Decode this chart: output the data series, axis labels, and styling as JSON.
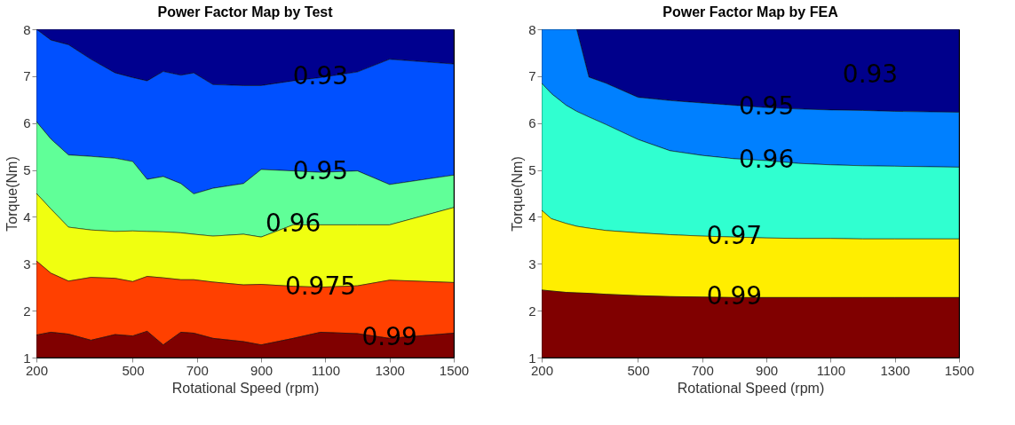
{
  "chart_data": [
    {
      "type": "area",
      "title": "Power Factor Map by Test",
      "xlabel": "Rotational Speed (rpm)",
      "ylabel": "Torque(Nm)",
      "x": [
        200,
        245,
        300,
        370,
        445,
        500,
        545,
        595,
        650,
        690,
        750,
        845,
        900,
        1000,
        1085,
        1200,
        1300,
        1500
      ],
      "series": [
        {
          "color": "#00008f",
          "values": [
            8,
            8,
            8,
            8,
            8,
            8,
            8,
            8,
            8,
            8,
            8,
            8,
            8,
            8,
            8,
            8,
            8,
            8
          ]
        },
        {
          "color": "#0050ff",
          "values": [
            8.0,
            7.77,
            7.67,
            7.36,
            7.07,
            6.97,
            6.9,
            7.1,
            7.02,
            7.07,
            6.82,
            6.8,
            6.8,
            6.9,
            6.97,
            7.09,
            7.36,
            7.26
          ]
        },
        {
          "color": "#60ff98",
          "values": [
            6.03,
            5.66,
            5.32,
            5.29,
            5.25,
            5.18,
            4.8,
            4.86,
            4.71,
            4.49,
            4.61,
            4.71,
            5.01,
            4.98,
            4.95,
            4.98,
            4.69,
            4.89
          ]
        },
        {
          "color": "#f0ff10",
          "values": [
            4.5,
            4.17,
            3.78,
            3.72,
            3.69,
            3.7,
            3.69,
            3.68,
            3.66,
            3.63,
            3.59,
            3.63,
            3.57,
            3.83,
            3.83,
            3.83,
            3.83,
            4.2
          ]
        },
        {
          "color": "#ff4000",
          "values": [
            3.06,
            2.8,
            2.63,
            2.71,
            2.69,
            2.62,
            2.73,
            2.7,
            2.66,
            2.66,
            2.61,
            2.55,
            2.56,
            2.52,
            2.5,
            2.53,
            2.65,
            2.6
          ]
        },
        {
          "color": "#800000",
          "values": [
            1.48,
            1.54,
            1.5,
            1.37,
            1.49,
            1.46,
            1.56,
            1.27,
            1.54,
            1.52,
            1.41,
            1.34,
            1.27,
            1.41,
            1.54,
            1.51,
            1.41,
            1.52
          ]
        }
      ],
      "xlim": [
        200,
        1500
      ],
      "ylim": [
        1,
        8
      ],
      "xticks": [
        200,
        500,
        700,
        900,
        1100,
        1300,
        1500
      ],
      "yticks": [
        1,
        2,
        3,
        4,
        5,
        6,
        7,
        8
      ],
      "annotations": [
        {
          "text": "0.93",
          "x": 1085,
          "y": 6.97
        },
        {
          "text": "0.95",
          "x": 1085,
          "y": 4.95
        },
        {
          "text": "0.96",
          "x": 1000,
          "y": 3.83
        },
        {
          "text": "0.975",
          "x": 1085,
          "y": 2.5
        },
        {
          "text": "0.99",
          "x": 1300,
          "y": 1.41
        }
      ]
    },
    {
      "type": "area",
      "title": "Power Factor Map by FEA",
      "xlabel": "Rotational Speed (rpm)",
      "ylabel": "Torque(Nm)",
      "x": [
        200,
        230,
        276,
        309,
        347,
        400,
        500,
        600,
        700,
        800,
        900,
        1000,
        1100,
        1200,
        1300,
        1500
      ],
      "series": [
        {
          "color": "#00008b",
          "values": [
            8,
            8,
            8,
            8,
            8,
            8,
            8,
            8,
            8,
            8,
            8,
            8,
            8,
            8,
            8,
            8
          ]
        },
        {
          "color": "#0080ff",
          "values": [
            8,
            8,
            8,
            8,
            6.98,
            6.85,
            6.55,
            6.48,
            6.43,
            6.38,
            6.33,
            6.3,
            6.28,
            6.27,
            6.25,
            6.23
          ]
        },
        {
          "color": "#30ffd0",
          "values": [
            6.85,
            6.63,
            6.38,
            6.25,
            6.13,
            5.97,
            5.65,
            5.41,
            5.31,
            5.24,
            5.2,
            5.14,
            5.11,
            5.09,
            5.08,
            5.06
          ]
        },
        {
          "color": "#ffee00",
          "values": [
            4.14,
            3.96,
            3.86,
            3.8,
            3.76,
            3.71,
            3.66,
            3.62,
            3.59,
            3.57,
            3.55,
            3.54,
            3.54,
            3.53,
            3.53,
            3.53
          ]
        },
        {
          "color": "#800000",
          "values": [
            2.44,
            2.42,
            2.39,
            2.38,
            2.37,
            2.35,
            2.32,
            2.3,
            2.29,
            2.28,
            2.28,
            2.28,
            2.28,
            2.28,
            2.28,
            2.28
          ]
        }
      ],
      "xlim": [
        200,
        1500
      ],
      "ylim": [
        1,
        8
      ],
      "xticks": [
        200,
        500,
        700,
        900,
        1100,
        1300,
        1500
      ],
      "yticks": [
        1,
        2,
        3,
        4,
        5,
        6,
        7,
        8
      ],
      "annotations": [
        "0.93",
        {
          "text": "0.95",
          "x": 900,
          "y": 6.33
        },
        {
          "text": "0.96",
          "x": 900,
          "y": 5.2
        },
        {
          "text": "0.97",
          "x": 800,
          "y": 3.57
        },
        {
          "text": "0.99",
          "x": 800,
          "y": 2.28
        }
      ]
    }
  ]
}
